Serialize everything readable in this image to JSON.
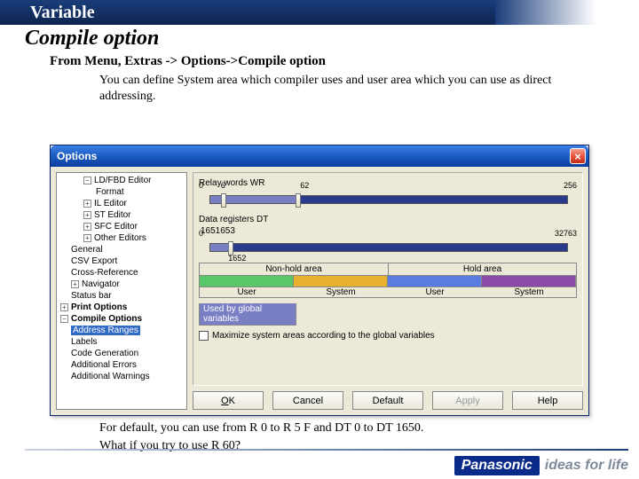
{
  "banner": {
    "title": "Variable"
  },
  "heading": "Compile option",
  "subheading": "From Menu, Extras -> Options->Compile option",
  "desc": "You can define System area which compiler uses and user area which you can use as direct addressing.",
  "footer1": "For default, you can use from R 0 to R 5 F and DT 0 to DT 1650.",
  "footer2": "What if you try to use R 60?",
  "logo": {
    "brand": "Panasonic",
    "tagline": "ideas for life"
  },
  "window": {
    "title": "Options",
    "close": "×",
    "tree": {
      "ld_fbd": "LD/FBD Editor",
      "format": "Format",
      "il": "IL Editor",
      "st": "ST Editor",
      "sfc": "SFC Editor",
      "other": "Other Editors",
      "general": "General",
      "csv": "CSV Export",
      "xref": "Cross-Reference",
      "nav": "Navigator",
      "status": "Status bar",
      "print": "Print Options",
      "compile": "Compile Options",
      "addr": "Address Ranges",
      "labels": "Labels",
      "codegen": "Code Generation",
      "adderr": "Additional Errors",
      "addwarn": "Additional Warnings"
    },
    "panel": {
      "relay": {
        "label": "Relay words WR",
        "min": "0",
        "thumb1": "6",
        "thumb2": "62",
        "max": "256",
        "thumb1_pct": 3.0,
        "thumb2_pct": 24.0
      },
      "dt": {
        "label": "Data registers DT",
        "sub": "1651653",
        "min": "0",
        "thumb1": "1652",
        "max": "32763",
        "thumb1_pct": 5.0
      },
      "legend": {
        "nonhold": "Non-hold area",
        "hold": "Hold area",
        "user": "User",
        "system": "System",
        "colors": {
          "user_nonhold": "#58c768",
          "sys_nonhold": "#e8b030",
          "user_hold": "#5a7ce0",
          "sys_hold": "#8a4aa8"
        },
        "used": "Used by global variables"
      },
      "maximize": "Maximize system areas according to the global variables"
    },
    "buttons": {
      "ok": "OK",
      "cancel": "Cancel",
      "default": "Default",
      "apply": "Apply",
      "help": "Help"
    }
  }
}
